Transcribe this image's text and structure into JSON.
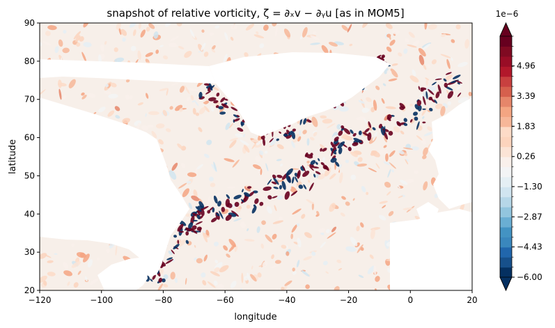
{
  "chart_data": {
    "type": "heatmap",
    "title": "snapshot of relative vorticity, ζ = ∂ₓv − ∂ᵧu [as in MOM5]",
    "xlabel": "longitude",
    "ylabel": "latitude",
    "xlim": [
      -120,
      20
    ],
    "ylim": [
      20,
      90
    ],
    "xticks": [
      "−120",
      "−100",
      "−80",
      "−60",
      "−40",
      "−20",
      "0",
      "20"
    ],
    "xtick_values": [
      -120,
      -100,
      -80,
      -60,
      -40,
      -20,
      0,
      20
    ],
    "yticks": [
      "20",
      "30",
      "40",
      "50",
      "60",
      "70",
      "80",
      "90"
    ],
    "ytick_values": [
      20,
      30,
      40,
      50,
      60,
      70,
      80,
      90
    ],
    "grid": false,
    "colorbar": {
      "colormap": "RdBu_r",
      "scale_label": "1e−6",
      "range": [
        -6.0,
        6.5
      ],
      "extend": "both",
      "n_levels": 24,
      "tick_labels": [
        "−6.00",
        "−4.43",
        "−2.87",
        "−1.30",
        "0.26",
        "1.83",
        "3.39",
        "4.96"
      ],
      "tick_values": [
        -6.0,
        -4.43,
        -2.87,
        -1.3,
        0.26,
        1.83,
        3.39,
        4.96
      ],
      "colors": [
        "#053061",
        "#17508b",
        "#2166ac",
        "#3a87bd",
        "#4393c3",
        "#6aaed3",
        "#92c5de",
        "#b6d7e8",
        "#d1e5f0",
        "#e5eff4",
        "#f3f4f5",
        "#f9f0eb",
        "#fbe4d6",
        "#fcd4bd",
        "#fddbc7",
        "#f7b799",
        "#f4a582",
        "#e6866a",
        "#d6604d",
        "#c8403f",
        "#b2182b",
        "#990d26",
        "#800a22",
        "#67001f"
      ]
    },
    "field": {
      "land_color": "#ffffff",
      "description_regions": [
        "North America",
        "Greenland",
        "Europe/Africa"
      ]
    }
  }
}
